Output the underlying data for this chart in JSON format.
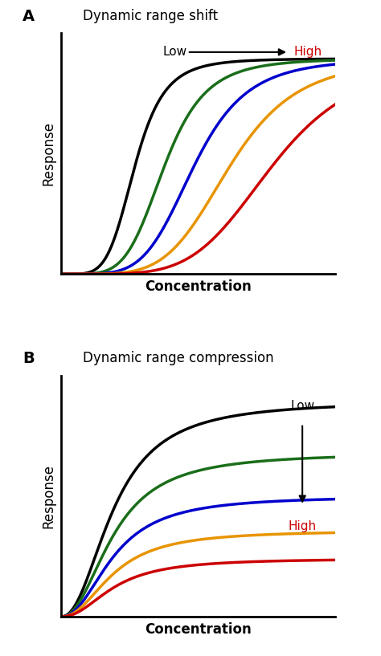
{
  "panel_A_title": "Dynamic range shift",
  "panel_B_title": "Dynamic range compression",
  "xlabel": "Concentration",
  "ylabel": "Response",
  "panel_label_A": "A",
  "panel_label_B": "B",
  "colors": [
    "#000000",
    "#1a6e1a",
    "#0000cc",
    "#e89400",
    "#cc0000"
  ],
  "shift_midpoints": [
    3.5,
    4.9,
    6.3,
    8.0,
    10.0
  ],
  "shift_max": 1.0,
  "shift_n": 5.0,
  "compression_midpoint": 2.5,
  "compression_maxima": [
    1.0,
    0.76,
    0.56,
    0.4,
    0.27
  ],
  "compression_n": 2.2,
  "x_max": 13.0,
  "low_label": "Low",
  "high_label": "High",
  "low_color": "#000000",
  "high_color": "#cc0000",
  "bg_color": "#ffffff"
}
